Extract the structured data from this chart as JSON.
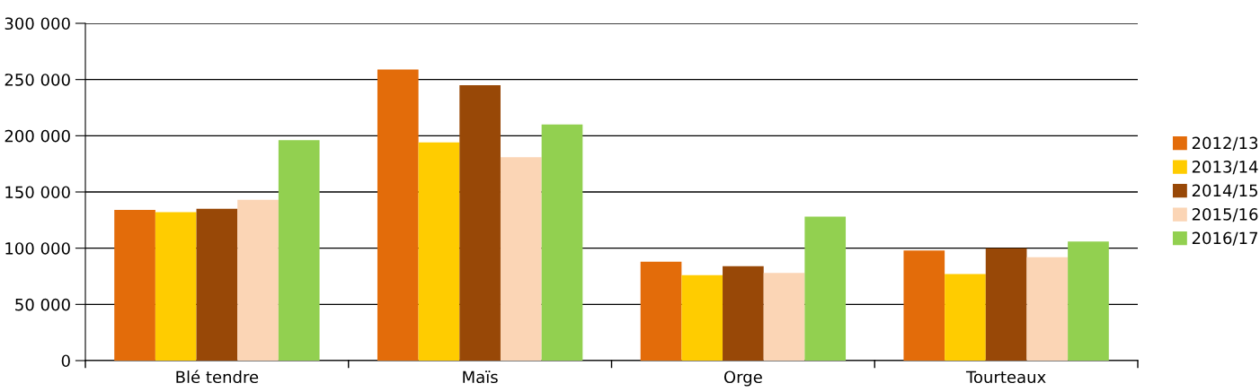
{
  "chart_data": {
    "type": "bar",
    "categories": [
      "Blé tendre",
      "Maïs",
      "Orge",
      "Tourteaux"
    ],
    "series": [
      {
        "name": "2012/13",
        "color": "#e36c0a",
        "values": [
          134000,
          259000,
          88000,
          98000
        ]
      },
      {
        "name": "2013/14",
        "color": "#ffcc00",
        "values": [
          132000,
          194000,
          76000,
          77000
        ]
      },
      {
        "name": "2014/15",
        "color": "#984807",
        "values": [
          135000,
          245000,
          84000,
          100000
        ]
      },
      {
        "name": "2015/16",
        "color": "#fbd5b5",
        "values": [
          143000,
          181000,
          78000,
          92000
        ]
      },
      {
        "name": "2016/17",
        "color": "#92d050",
        "values": [
          196000,
          210000,
          128000,
          106000
        ]
      }
    ],
    "ylim": [
      0,
      300000
    ],
    "yticks": [
      {
        "value": 0,
        "label": "0"
      },
      {
        "value": 50000,
        "label": "50 000"
      },
      {
        "value": 100000,
        "label": "100 000"
      },
      {
        "value": 150000,
        "label": "150 000"
      },
      {
        "value": 200000,
        "label": "200 000"
      },
      {
        "value": 250000,
        "label": "250 000"
      },
      {
        "value": 300000,
        "label": "300 000"
      }
    ],
    "grid": "y",
    "legend": "right"
  }
}
